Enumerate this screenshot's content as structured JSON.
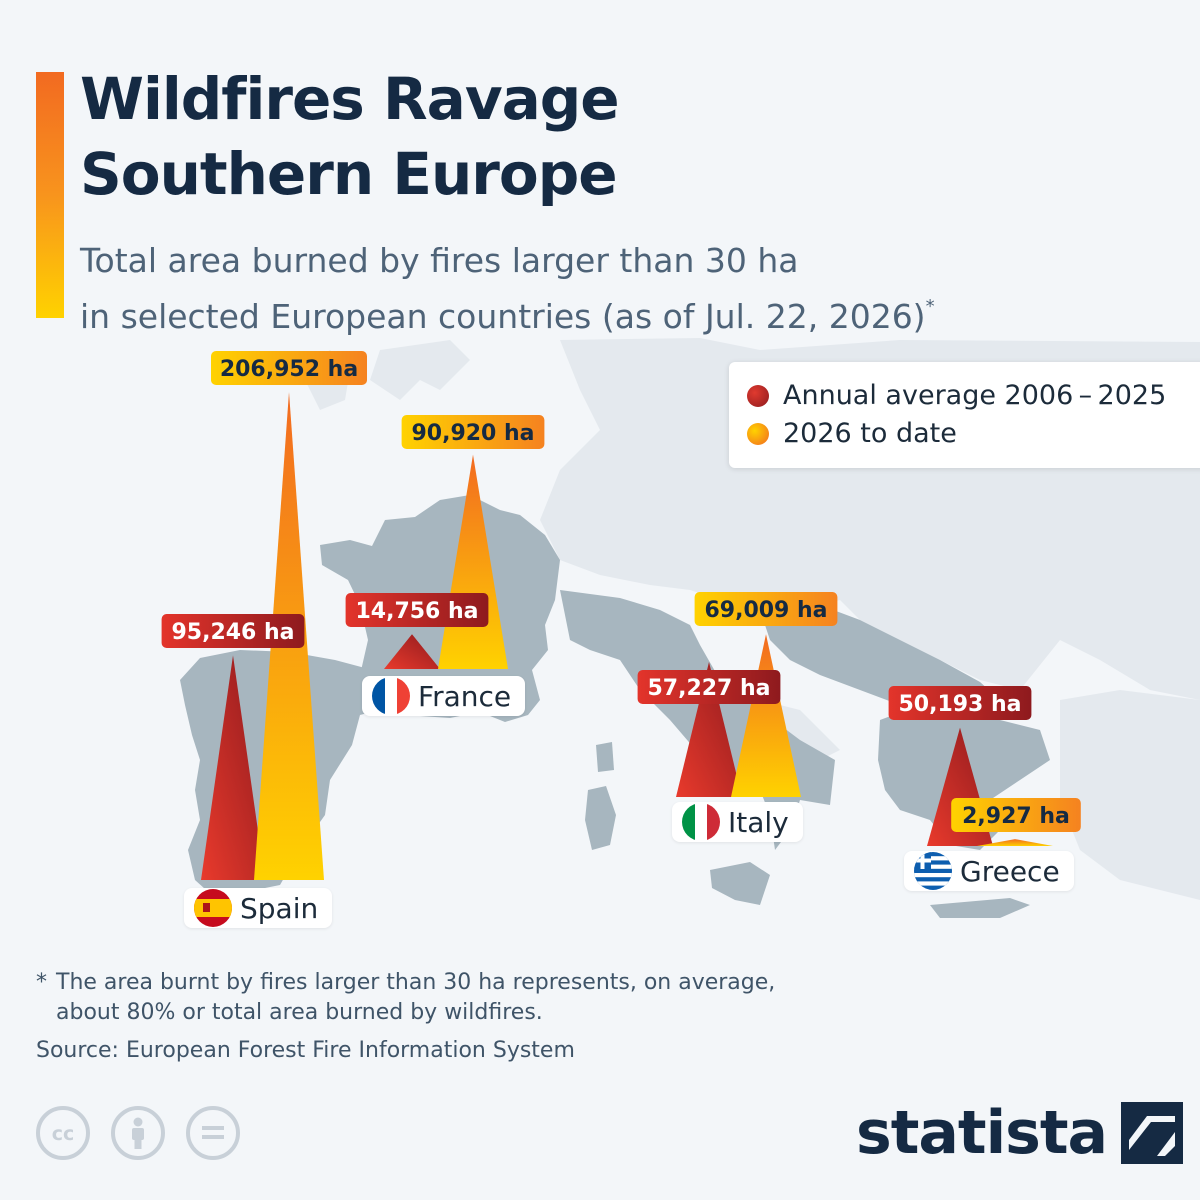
{
  "title_line1": "Wildfires Ravage",
  "title_line2": "Southern Europe",
  "subtitle_line1": "Total area burned by fires larger than 30 ha",
  "subtitle_line2": "in selected European countries (as of Jul. 22, 2026)",
  "subtitle_mark": "*",
  "legend": [
    {
      "label": "Annual average 2006 – 2025",
      "color": "#b5191f"
    },
    {
      "label": "2026 to date",
      "color": "#f8941d"
    }
  ],
  "chart_data": {
    "type": "bar",
    "unit": "ha",
    "categories": [
      "Spain",
      "France",
      "Italy",
      "Greece"
    ],
    "series": [
      {
        "name": "Annual average 2006 – 2025",
        "values": [
          95246,
          14756,
          57227,
          50193
        ],
        "labels": [
          "95,246 ha",
          "14,756 ha",
          "57,227 ha",
          "50,193 ha"
        ],
        "color": "#b5191f"
      },
      {
        "name": "2026 to date",
        "values": [
          206952,
          90920,
          69009,
          2927
        ],
        "labels": [
          "206,952 ha",
          "90,920 ha",
          "69,009 ha",
          "2,927 ha"
        ],
        "color": "#f8941d"
      }
    ]
  },
  "countries": [
    {
      "name": "Spain",
      "flag": "spain-flag-icon"
    },
    {
      "name": "France",
      "flag": "france-flag-icon"
    },
    {
      "name": "Italy",
      "flag": "italy-flag-icon"
    },
    {
      "name": "Greece",
      "flag": "greece-flag-icon"
    }
  ],
  "footnote_star": "*",
  "footnote_line1": "The area burnt by fires larger than 30 ha represents, on average,",
  "footnote_line2": "about 80% or total area burned by wildfires.",
  "source": "Source: European Forest Fire Information System",
  "license_icons": [
    "cc-icon",
    "attribution-icon",
    "no-derivatives-icon"
  ],
  "brand": "statista",
  "brand_logo": "statista-logo-icon",
  "colors": {
    "title": "#152a43",
    "subtitle": "#4e6378",
    "map_land": "#a7b6bf",
    "background": "#f3f6f9"
  }
}
